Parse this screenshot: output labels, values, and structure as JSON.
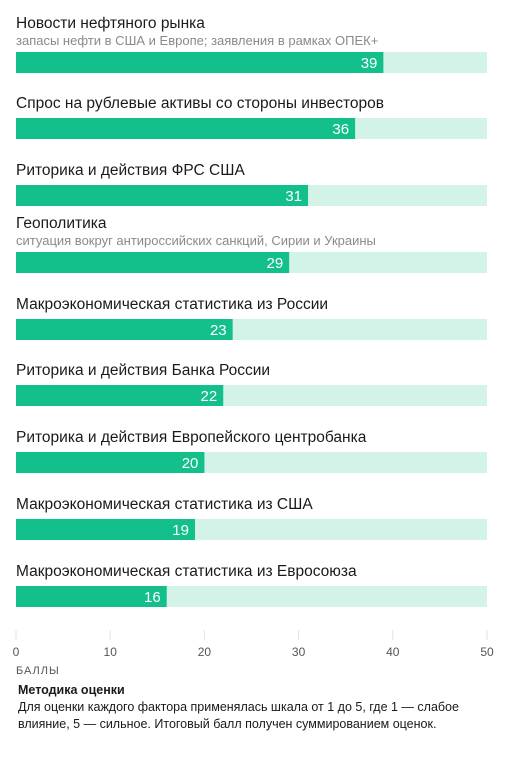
{
  "chart_data": {
    "type": "bar",
    "orientation": "horizontal",
    "xlim": [
      0,
      50
    ],
    "xticks": [
      0,
      10,
      20,
      30,
      40,
      50
    ],
    "xlabel": "БАЛЛЫ",
    "categories": [
      "Новости нефтяного рынка",
      "Спрос на рублевые активы со стороны инвесторов",
      "Риторика и действия ФРС США",
      "Геополитика",
      "Макроэкономическая статистика из России",
      "Риторика и действия Банка России",
      "Риторика и действия Европейского центробанка",
      "Макроэкономическая статистика из США",
      "Макроэкономическая статистика из Евросоюза"
    ],
    "subtitles": [
      "запасы нефти в США и Европе; заявления в рамках ОПЕК+",
      "",
      "",
      "ситуация вокруг антироссийских санкций, Сирии и Украины",
      "",
      "",
      "",
      "",
      ""
    ],
    "values": [
      39,
      36,
      31,
      29,
      23,
      22,
      20,
      19,
      16
    ],
    "colors": {
      "bar": "#13c08c",
      "track": "#d3f2e8"
    }
  },
  "methodology": {
    "title": "Методика оценки",
    "text": "Для оценки каждого фактора применялась шкала от 1 до 5, где 1 — слабое влияние, 5 — сильное. Итоговый балл получен суммированием оценок."
  }
}
